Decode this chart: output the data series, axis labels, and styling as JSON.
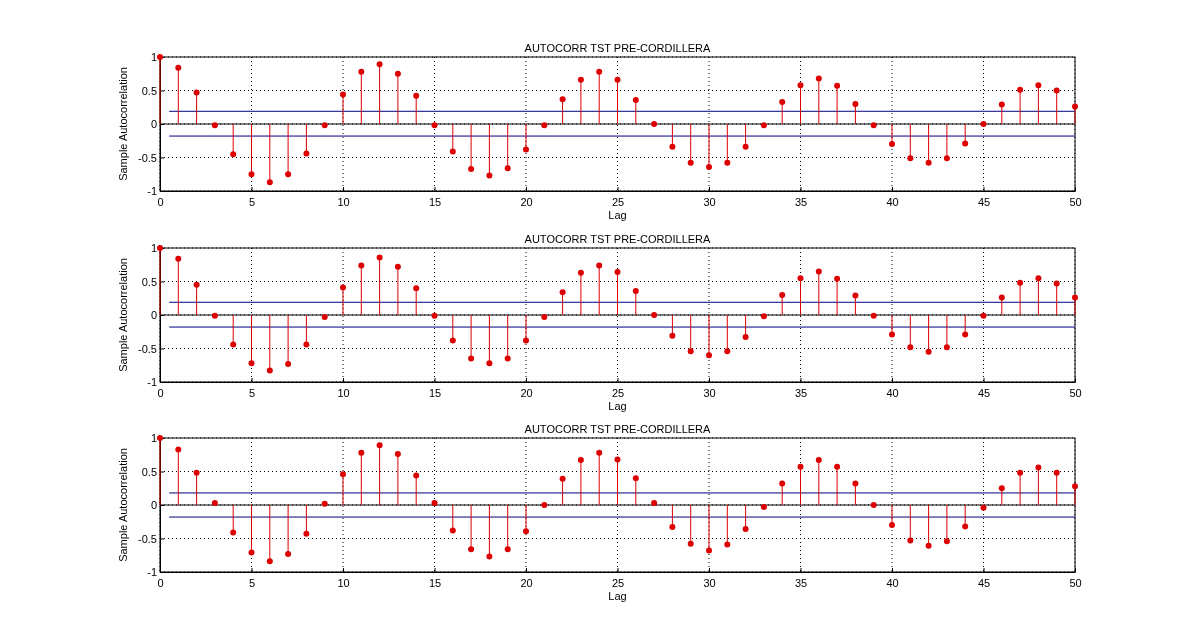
{
  "chart_data": [
    {
      "type": "lollipop",
      "title": "AUTOCORR TST PRE-CORDILLERA",
      "xlabel": "Lag",
      "ylabel": "Sample Autocorrelation",
      "x": [
        0,
        1,
        2,
        3,
        4,
        5,
        6,
        7,
        8,
        9,
        10,
        11,
        12,
        13,
        14,
        15,
        16,
        17,
        18,
        19,
        20,
        21,
        22,
        23,
        24,
        25,
        26,
        27,
        28,
        29,
        30,
        31,
        32,
        33,
        34,
        35,
        36,
        37,
        38,
        39,
        40,
        41,
        42,
        43,
        44,
        45,
        46,
        47,
        48,
        49,
        50
      ],
      "series": [
        {
          "color": "#dd0000",
          "values": [
            1,
            0.84,
            0.47,
            -0.02,
            -0.45,
            -0.75,
            -0.87,
            -0.75,
            -0.44,
            -0.02,
            0.44,
            0.78,
            0.89,
            0.75,
            0.42,
            -0.02,
            -0.41,
            -0.67,
            -0.77,
            -0.66,
            -0.38,
            -0.02,
            0.37,
            0.66,
            0.78,
            0.66,
            0.36,
            0,
            -0.34,
            -0.58,
            -0.64,
            -0.58,
            -0.34,
            -0.02,
            0.33,
            0.58,
            0.68,
            0.57,
            0.3,
            -0.02,
            -0.3,
            -0.51,
            -0.58,
            -0.51,
            -0.29,
            0,
            0.29,
            0.51,
            0.58,
            0.5,
            0.26
          ]
        }
      ],
      "xlim": [
        0,
        50
      ],
      "xticks": [
        0,
        5,
        10,
        15,
        20,
        25,
        30,
        35,
        40,
        45,
        50
      ],
      "ylim": [
        -1,
        1
      ],
      "yticks": [
        -1,
        -0.5,
        0,
        0.5,
        1
      ],
      "grid": true,
      "marker": "circle",
      "ref_lines": [
        {
          "axis": "y",
          "value": 0.19,
          "color": "#000080"
        },
        {
          "axis": "y",
          "value": -0.18,
          "color": "#000080"
        },
        {
          "axis": "y",
          "value": 0,
          "color": "#000000"
        }
      ]
    },
    {
      "type": "lollipop",
      "title": "AUTOCORR TST PRE-CORDILLERA",
      "xlabel": "Lag",
      "ylabel": "Sample Autocorrelation",
      "x": [
        0,
        1,
        2,
        3,
        4,
        5,
        6,
        7,
        8,
        9,
        10,
        11,
        12,
        13,
        14,
        15,
        16,
        17,
        18,
        19,
        20,
        21,
        22,
        23,
        24,
        25,
        26,
        27,
        28,
        29,
        30,
        31,
        32,
        33,
        34,
        35,
        36,
        37,
        38,
        39,
        40,
        41,
        42,
        43,
        44,
        45,
        46,
        47,
        48,
        49,
        50
      ],
      "series": [
        {
          "color": "#dd0000",
          "values": [
            1,
            0.84,
            0.45,
            -0.01,
            -0.44,
            -0.72,
            -0.83,
            -0.73,
            -0.44,
            -0.03,
            0.41,
            0.74,
            0.86,
            0.72,
            0.4,
            -0.01,
            -0.38,
            -0.65,
            -0.72,
            -0.65,
            -0.38,
            -0.03,
            0.34,
            0.63,
            0.74,
            0.64,
            0.36,
            0,
            -0.31,
            -0.54,
            -0.6,
            -0.54,
            -0.33,
            -0.02,
            0.3,
            0.55,
            0.65,
            0.54,
            0.29,
            -0.01,
            -0.29,
            -0.48,
            -0.55,
            -0.48,
            -0.29,
            -0.01,
            0.26,
            0.48,
            0.55,
            0.47,
            0.26
          ]
        }
      ],
      "xlim": [
        0,
        50
      ],
      "xticks": [
        0,
        5,
        10,
        15,
        20,
        25,
        30,
        35,
        40,
        45,
        50
      ],
      "ylim": [
        -1,
        1
      ],
      "yticks": [
        -1,
        -0.5,
        0,
        0.5,
        1
      ],
      "grid": true,
      "marker": "circle",
      "ref_lines": [
        {
          "axis": "y",
          "value": 0.19,
          "color": "#000080"
        },
        {
          "axis": "y",
          "value": -0.18,
          "color": "#000080"
        },
        {
          "axis": "y",
          "value": 0,
          "color": "#000000"
        }
      ]
    },
    {
      "type": "lollipop",
      "title": "AUTOCORR TST PRE-CORDILLERA",
      "xlabel": "Lag",
      "ylabel": "Sample Autocorrelation",
      "x": [
        0,
        1,
        2,
        3,
        4,
        5,
        6,
        7,
        8,
        9,
        10,
        11,
        12,
        13,
        14,
        15,
        16,
        17,
        18,
        19,
        20,
        21,
        22,
        23,
        24,
        25,
        26,
        27,
        28,
        29,
        30,
        31,
        32,
        33,
        34,
        35,
        36,
        37,
        38,
        39,
        40,
        41,
        42,
        43,
        44,
        45,
        46,
        47,
        48,
        49,
        50
      ],
      "series": [
        {
          "color": "#dd0000",
          "values": [
            1,
            0.83,
            0.48,
            0.03,
            -0.41,
            -0.71,
            -0.84,
            -0.73,
            -0.43,
            0.02,
            0.46,
            0.78,
            0.89,
            0.76,
            0.44,
            0.03,
            -0.38,
            -0.66,
            -0.77,
            -0.66,
            -0.39,
            0,
            0.39,
            0.67,
            0.78,
            0.68,
            0.4,
            0.03,
            -0.33,
            -0.58,
            -0.68,
            -0.59,
            -0.36,
            -0.03,
            0.32,
            0.57,
            0.67,
            0.57,
            0.32,
            0,
            -0.3,
            -0.53,
            -0.61,
            -0.54,
            -0.32,
            -0.04,
            0.25,
            0.48,
            0.56,
            0.48,
            0.28
          ]
        }
      ],
      "xlim": [
        0,
        50
      ],
      "xticks": [
        0,
        5,
        10,
        15,
        20,
        25,
        30,
        35,
        40,
        45,
        50
      ],
      "ylim": [
        -1,
        1
      ],
      "yticks": [
        -1,
        -0.5,
        0,
        0.5,
        1
      ],
      "grid": true,
      "marker": "circle",
      "ref_lines": [
        {
          "axis": "y",
          "value": 0.18,
          "color": "#000080"
        },
        {
          "axis": "y",
          "value": -0.18,
          "color": "#000080"
        },
        {
          "axis": "y",
          "value": 0,
          "color": "#000000"
        }
      ]
    }
  ]
}
